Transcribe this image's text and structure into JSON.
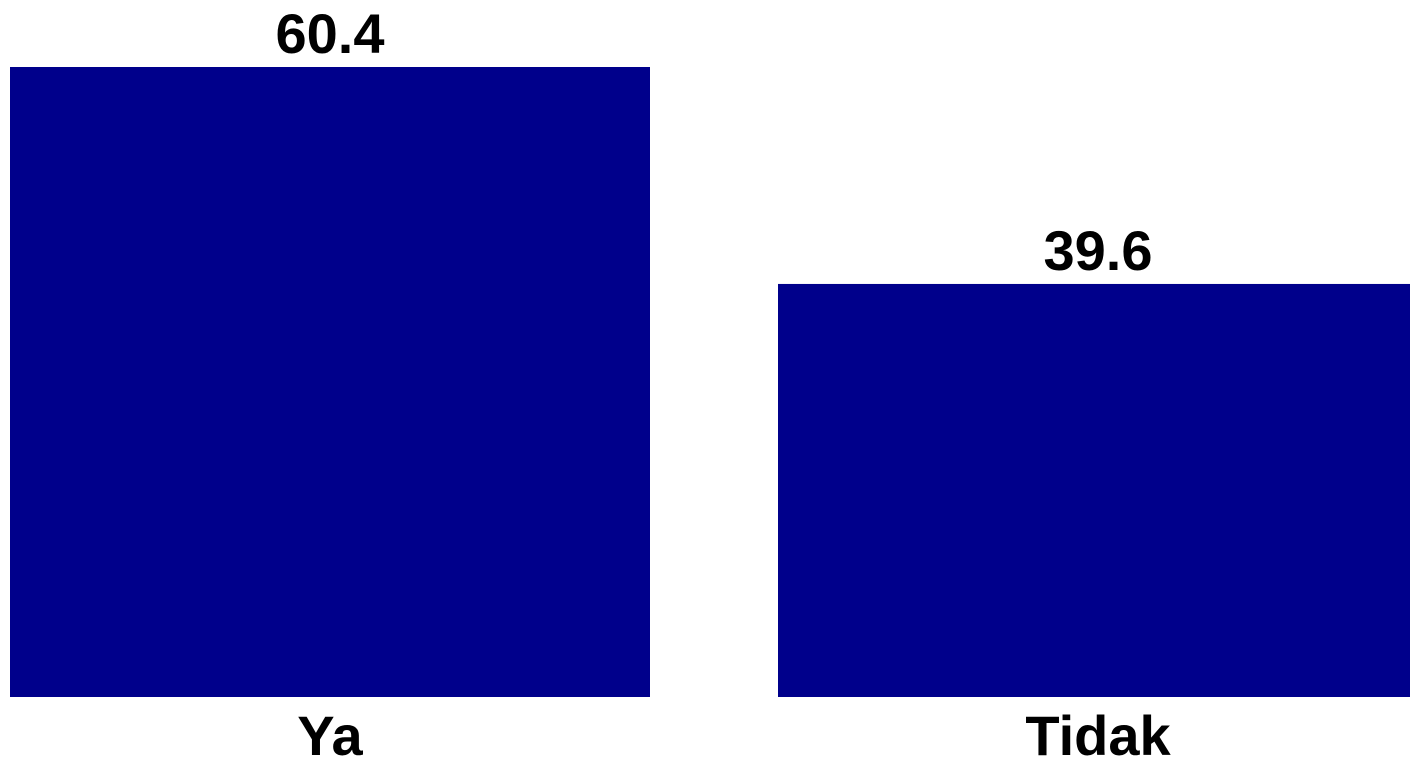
{
  "chart_data": {
    "type": "bar",
    "categories": [
      "Ya",
      "Tidak"
    ],
    "values": [
      60.4,
      39.6
    ],
    "value_labels": [
      "60.4",
      "39.6"
    ],
    "ylim": [
      0,
      60.4
    ],
    "grid": false,
    "bar_color": "#00008B"
  }
}
